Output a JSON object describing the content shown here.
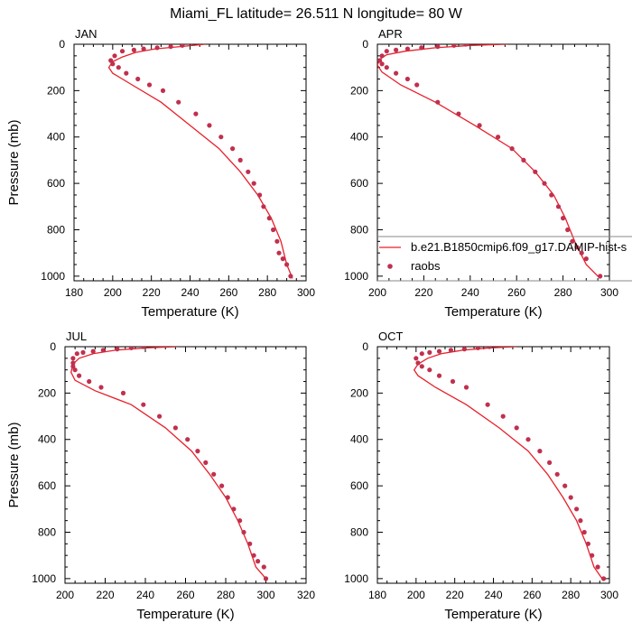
{
  "suptitle": "Miami_FL  latitude= 26.511 N longitude= 80 W",
  "colors": {
    "model": "#e8202a",
    "raobs": "#c0304e"
  },
  "legend": {
    "model_label": "b.e21.B1850cmip6.f09_g17.DAMIP-hist-s",
    "obs_label": "raobs"
  },
  "chart_data": [
    {
      "type": "line",
      "title": "JAN",
      "xlabel": "Temperature (K)",
      "ylabel": "Pressure (mb)",
      "xlim": [
        180,
        300
      ],
      "ylim": [
        0,
        1020
      ],
      "y_inverted": true,
      "xticks": [
        180,
        200,
        220,
        240,
        260,
        280,
        300
      ],
      "yticks": [
        0,
        200,
        400,
        600,
        800,
        1000
      ],
      "series": [
        {
          "name": "b.e21.B1850cmip6.f09_g17.DAMIP-hist-s",
          "kind": "line",
          "x": [
            248,
            235,
            222,
            212,
            205,
            200,
            198,
            200,
            210,
            225,
            240,
            255,
            266,
            275,
            282,
            287,
            290,
            293
          ],
          "y": [
            0,
            10,
            20,
            35,
            55,
            75,
            100,
            125,
            175,
            250,
            350,
            450,
            550,
            650,
            750,
            850,
            950,
            1010
          ]
        },
        {
          "name": "raobs",
          "kind": "scatter",
          "x": [
            236,
            230,
            223,
            216,
            211,
            205,
            201,
            199,
            200,
            203,
            207,
            213,
            219,
            226,
            234,
            243,
            250,
            256,
            262,
            266,
            270,
            273,
            276,
            278,
            281,
            283,
            285,
            286,
            288,
            290,
            292
          ],
          "y": [
            5,
            10,
            15,
            20,
            25,
            30,
            50,
            70,
            85,
            100,
            125,
            150,
            175,
            200,
            250,
            300,
            350,
            400,
            450,
            500,
            550,
            600,
            650,
            700,
            750,
            800,
            850,
            900,
            925,
            950,
            1000
          ]
        }
      ]
    },
    {
      "type": "line",
      "title": "APR",
      "xlabel": "Temperature (K)",
      "ylabel": "",
      "xlim": [
        200,
        300
      ],
      "ylim": [
        0,
        1020
      ],
      "y_inverted": true,
      "xticks": [
        200,
        220,
        240,
        260,
        280,
        300
      ],
      "yticks": [
        0,
        200,
        400,
        600,
        800,
        1000
      ],
      "legend": "bottom-right",
      "series": [
        {
          "name": "b.e21.B1850cmip6.f09_g17.DAMIP-hist-s",
          "kind": "line",
          "x": [
            256,
            240,
            225,
            212,
            204,
            201,
            200,
            202,
            210,
            225,
            242,
            258,
            268,
            276,
            281,
            285,
            290,
            296
          ],
          "y": [
            0,
            5,
            15,
            30,
            45,
            65,
            90,
            120,
            175,
            250,
            350,
            450,
            550,
            650,
            750,
            850,
            950,
            1010
          ]
        },
        {
          "name": "raobs",
          "kind": "scatter",
          "x": [
            238,
            233,
            226,
            219,
            213,
            208,
            204,
            202,
            201,
            202,
            204,
            208,
            213,
            217,
            226,
            235,
            244,
            252,
            258,
            263,
            268,
            272,
            275,
            278,
            280,
            282,
            284,
            286,
            288,
            290,
            296
          ],
          "y": [
            0,
            5,
            10,
            15,
            20,
            25,
            30,
            50,
            70,
            85,
            100,
            125,
            150,
            175,
            250,
            300,
            350,
            400,
            450,
            500,
            550,
            600,
            650,
            700,
            750,
            800,
            850,
            875,
            900,
            925,
            1000
          ]
        }
      ]
    },
    {
      "type": "line",
      "title": "JUL",
      "xlabel": "Temperature (K)",
      "ylabel": "Pressure (mb)",
      "xlim": [
        200,
        320
      ],
      "ylim": [
        0,
        1020
      ],
      "y_inverted": true,
      "xticks": [
        200,
        220,
        240,
        260,
        280,
        300,
        320
      ],
      "yticks": [
        0,
        200,
        400,
        600,
        800,
        1000
      ],
      "series": [
        {
          "name": "b.e21.B1850cmip6.f09_g17.DAMIP-hist-s",
          "kind": "line",
          "x": [
            256,
            240,
            225,
            214,
            207,
            204,
            203,
            205,
            215,
            233,
            250,
            263,
            272,
            280,
            286,
            291,
            295,
            300
          ],
          "y": [
            0,
            5,
            15,
            30,
            50,
            75,
            110,
            145,
            190,
            250,
            350,
            450,
            550,
            650,
            750,
            850,
            950,
            1000
          ]
        },
        {
          "name": "raobs",
          "kind": "scatter",
          "x": [
            239,
            233,
            226,
            219,
            214,
            209,
            206,
            204,
            204,
            204,
            205,
            207,
            212,
            218,
            229,
            239,
            247,
            255,
            261,
            266,
            270,
            274,
            278,
            281,
            284,
            287,
            289,
            292,
            294,
            296,
            299,
            300
          ],
          "y": [
            0,
            5,
            10,
            15,
            20,
            25,
            30,
            50,
            70,
            85,
            100,
            125,
            150,
            175,
            200,
            250,
            300,
            350,
            400,
            450,
            500,
            550,
            600,
            650,
            700,
            750,
            800,
            850,
            900,
            925,
            950,
            1000
          ]
        }
      ]
    },
    {
      "type": "line",
      "title": "OCT",
      "xlabel": "Temperature (K)",
      "ylabel": "",
      "xlim": [
        180,
        300
      ],
      "ylim": [
        0,
        1020
      ],
      "y_inverted": true,
      "xticks": [
        180,
        200,
        220,
        240,
        260,
        280,
        300
      ],
      "yticks": [
        0,
        200,
        400,
        600,
        800,
        1000
      ],
      "series": [
        {
          "name": "b.e21.B1850cmip6.f09_g17.DAMIP-hist-s",
          "kind": "line",
          "x": [
            252,
            238,
            224,
            213,
            206,
            201,
            199,
            201,
            210,
            226,
            243,
            258,
            268,
            276,
            283,
            288,
            292,
            297
          ],
          "y": [
            0,
            5,
            15,
            30,
            50,
            75,
            100,
            125,
            175,
            250,
            350,
            450,
            550,
            650,
            750,
            850,
            950,
            1010
          ]
        },
        {
          "name": "raobs",
          "kind": "scatter",
          "x": [
            238,
            232,
            225,
            218,
            212,
            207,
            203,
            200,
            201,
            203,
            207,
            212,
            219,
            226,
            237,
            245,
            252,
            258,
            264,
            269,
            273,
            277,
            280,
            283,
            285,
            287,
            289,
            291,
            294,
            297
          ],
          "y": [
            0,
            5,
            10,
            15,
            20,
            25,
            30,
            50,
            70,
            85,
            100,
            125,
            150,
            175,
            250,
            300,
            350,
            400,
            450,
            500,
            550,
            600,
            650,
            700,
            750,
            800,
            850,
            900,
            950,
            1000
          ]
        }
      ]
    }
  ]
}
